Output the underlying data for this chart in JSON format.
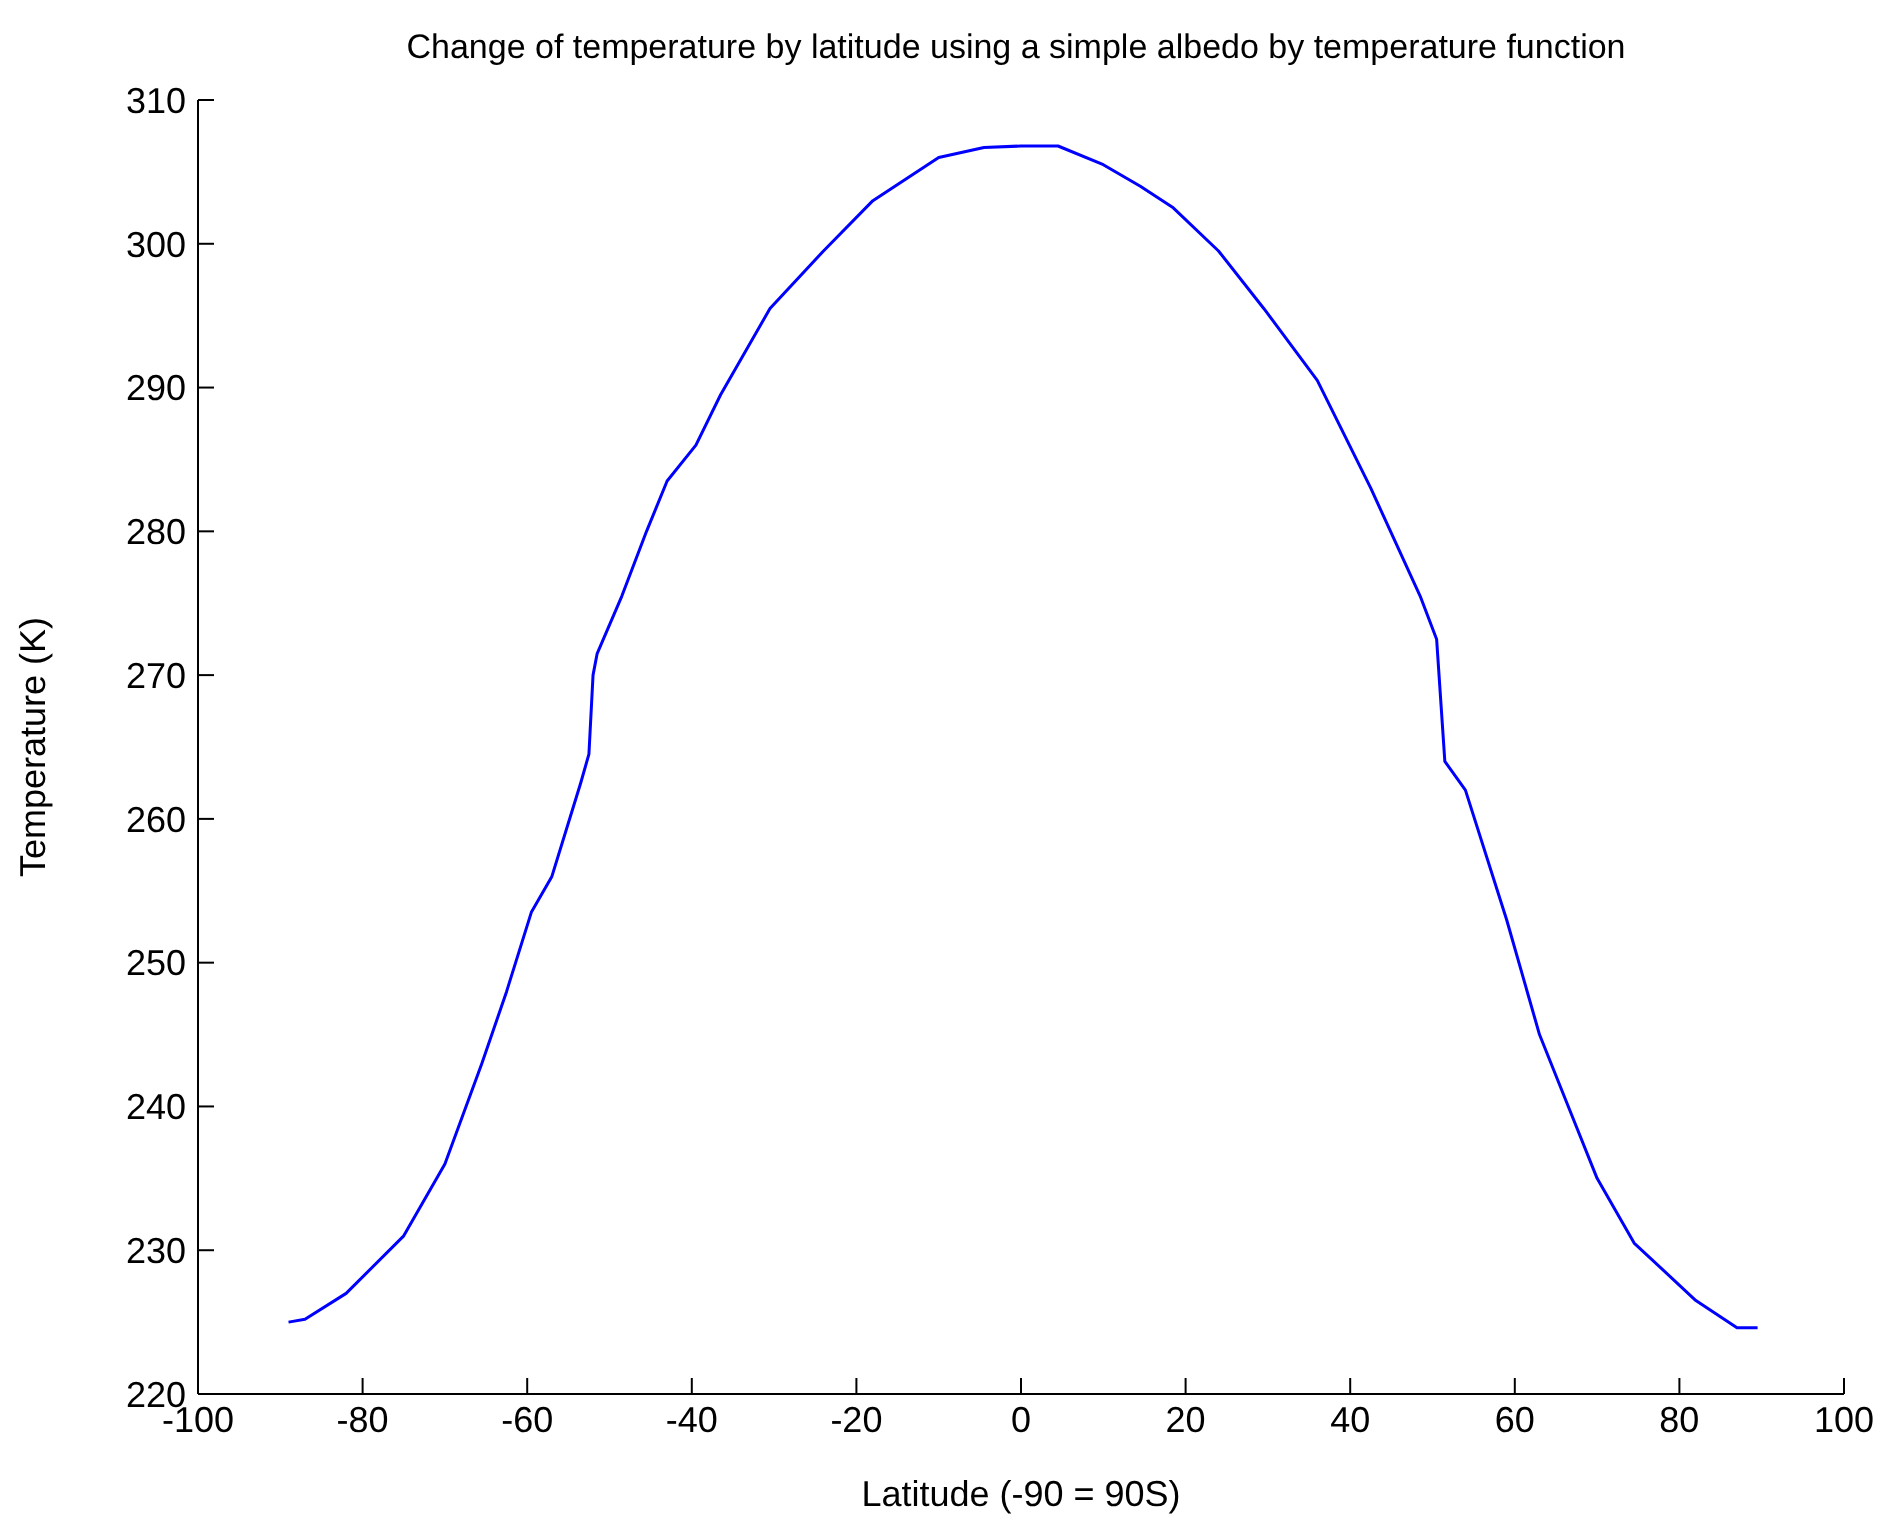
{
  "chart_data": {
    "type": "line",
    "title": "Change of temperature by latitude using a simple albedo by temperature function",
    "xlabel": "Latitude (-90 = 90S)",
    "ylabel": "Temperature (K)",
    "x": [
      -89,
      -87,
      -82,
      -75,
      -70,
      -65.5,
      -62.5,
      -59.5,
      -57,
      -53.5,
      -52.5,
      -52,
      -51.5,
      -48.5,
      -45.5,
      -43,
      -39.5,
      -36.5,
      -30.5,
      -24,
      -18,
      -10,
      -4.5,
      0,
      4.5,
      10,
      14.5,
      18.5,
      24,
      29.5,
      36,
      42.5,
      48.5,
      50.5,
      51.5,
      54,
      59,
      63,
      66.5,
      70,
      74.5,
      82,
      87,
      89.5
    ],
    "series": [
      {
        "color": "#0000ff",
        "values": [
          225,
          225.2,
          227,
          231,
          236,
          243,
          248,
          253.5,
          256,
          262.5,
          264.5,
          270,
          271.5,
          275.5,
          280,
          283.5,
          286,
          289.5,
          295.5,
          299.5,
          303,
          306,
          306.7,
          306.8,
          306.8,
          305.5,
          304,
          302.5,
          299.5,
          295.5,
          290.5,
          283,
          275.5,
          272.5,
          264,
          262,
          253,
          245,
          240,
          235,
          230.5,
          226.5,
          224.6,
          224.6
        ]
      }
    ],
    "xlim": [
      -100,
      100
    ],
    "xticks": [
      -100,
      -80,
      -60,
      -40,
      -20,
      0,
      20,
      40,
      60,
      80,
      100
    ],
    "ylim": [
      220,
      310
    ],
    "yticks": [
      220,
      230,
      240,
      250,
      260,
      270,
      280,
      290,
      300,
      310
    ],
    "grid": false,
    "legend": false,
    "marker": "none",
    "line_style": "solid"
  }
}
